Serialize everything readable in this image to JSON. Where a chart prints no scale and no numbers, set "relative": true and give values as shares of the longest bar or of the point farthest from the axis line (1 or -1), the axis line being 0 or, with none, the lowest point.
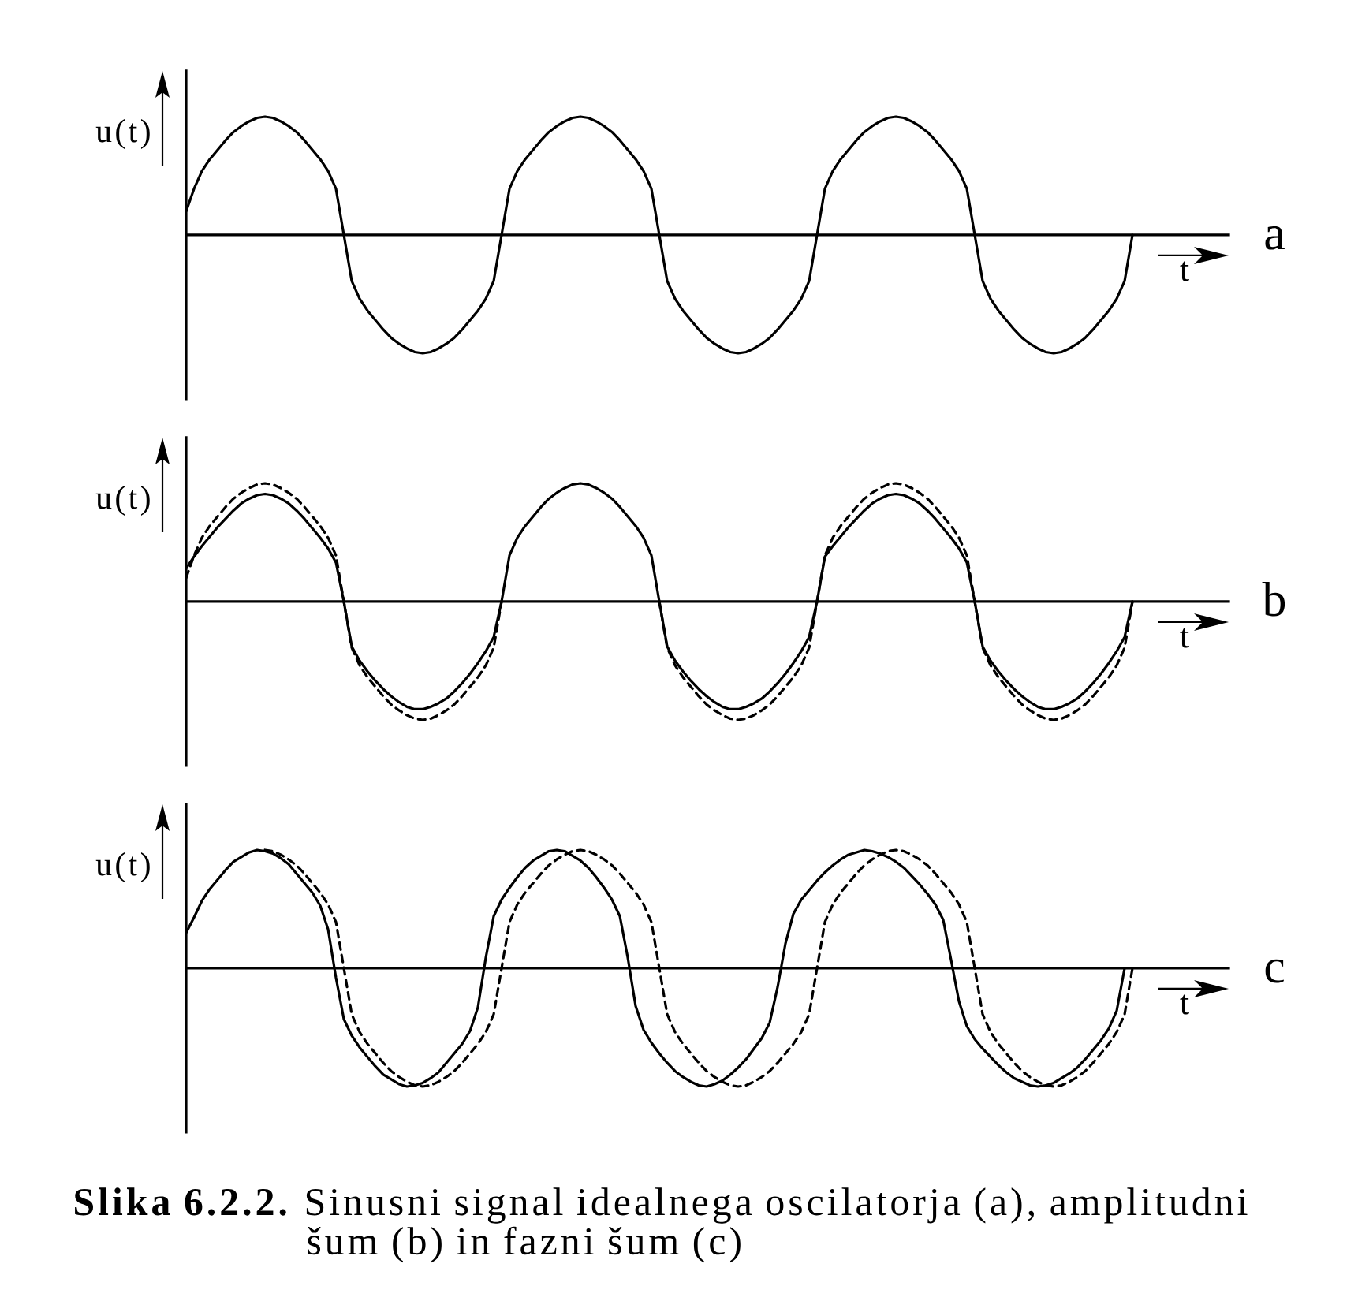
{
  "chart_data": [
    {
      "type": "line",
      "xlabel": "t",
      "ylabel": "u(t)",
      "relative": true,
      "annotations": [
        "a"
      ],
      "categories": [
        null,
        null,
        null,
        null,
        null,
        null,
        null,
        null,
        null,
        null,
        null,
        null,
        null,
        null,
        null,
        null,
        null,
        null,
        null,
        null,
        null,
        null,
        null,
        null,
        null,
        null,
        null,
        null,
        null,
        null,
        null,
        null,
        null,
        null,
        null,
        null,
        null,
        null,
        null,
        null,
        null,
        null,
        null,
        null,
        null,
        null,
        null,
        null,
        null,
        null,
        null,
        null,
        null,
        null,
        null,
        null,
        null,
        null,
        null,
        null,
        null,
        null,
        null,
        null,
        null,
        null,
        null,
        null,
        null,
        null,
        null,
        null,
        null,
        null,
        null,
        null,
        null,
        null,
        null,
        null,
        null,
        null,
        null,
        null,
        null,
        null,
        null,
        null,
        null,
        null,
        null,
        null,
        null,
        null,
        null,
        null,
        null,
        null,
        null,
        null,
        null,
        null,
        null,
        null,
        null,
        null,
        null,
        null,
        null,
        null,
        null,
        null,
        null,
        null,
        null,
        null,
        null,
        null,
        null,
        null,
        null
      ],
      "series": [
        {
          "color": "#000000",
          "line_style": "solid",
          "values": [
            0.2,
            0.39,
            0.54,
            0.64,
            0.72,
            0.8,
            0.87,
            0.92,
            0.96,
            0.99,
            1.0,
            0.99,
            0.96,
            0.92,
            0.87,
            0.8,
            0.72,
            0.64,
            0.54,
            0.39,
            0,
            -0.39,
            -0.54,
            -0.64,
            -0.72,
            -0.8,
            -0.87,
            -0.92,
            -0.96,
            -0.99,
            -1.0,
            -0.99,
            -0.96,
            -0.92,
            -0.87,
            -0.8,
            -0.72,
            -0.64,
            -0.54,
            -0.39,
            0,
            0.39,
            0.54,
            0.64,
            0.72,
            0.8,
            0.87,
            0.92,
            0.96,
            0.99,
            1.0,
            0.99,
            0.96,
            0.92,
            0.87,
            0.8,
            0.72,
            0.64,
            0.54,
            0.39,
            0,
            -0.39,
            -0.54,
            -0.64,
            -0.72,
            -0.8,
            -0.87,
            -0.92,
            -0.96,
            -0.99,
            -1.0,
            -0.99,
            -0.96,
            -0.92,
            -0.87,
            -0.8,
            -0.72,
            -0.64,
            -0.54,
            -0.39,
            0,
            0.39,
            0.54,
            0.64,
            0.72,
            0.8,
            0.87,
            0.92,
            0.96,
            0.99,
            1.0,
            0.99,
            0.96,
            0.92,
            0.87,
            0.8,
            0.72,
            0.64,
            0.54,
            0.39,
            0,
            -0.39,
            -0.54,
            -0.64,
            -0.72,
            -0.8,
            -0.87,
            -0.92,
            -0.96,
            -0.99,
            -1.0,
            -0.99,
            -0.96,
            -0.92,
            -0.87,
            -0.8,
            -0.72,
            -0.64,
            -0.54,
            -0.39,
            0
          ]
        }
      ]
    },
    {
      "type": "line",
      "xlabel": "t",
      "ylabel": "u(t)",
      "relative": true,
      "annotations": [
        "b"
      ],
      "categories": [
        null,
        null,
        null,
        null,
        null,
        null,
        null,
        null,
        null,
        null,
        null,
        null,
        null,
        null,
        null,
        null,
        null,
        null,
        null,
        null,
        null,
        null,
        null,
        null,
        null,
        null,
        null,
        null,
        null,
        null,
        null,
        null,
        null,
        null,
        null,
        null,
        null,
        null,
        null,
        null,
        null,
        null,
        null,
        null,
        null,
        null,
        null,
        null,
        null,
        null,
        null,
        null,
        null,
        null,
        null,
        null,
        null,
        null,
        null,
        null,
        null,
        null,
        null,
        null,
        null,
        null,
        null,
        null,
        null,
        null,
        null,
        null,
        null,
        null,
        null,
        null,
        null,
        null,
        null,
        null,
        null,
        null,
        null,
        null,
        null,
        null,
        null,
        null,
        null,
        null,
        null,
        null,
        null,
        null,
        null,
        null,
        null,
        null,
        null,
        null,
        null,
        null,
        null,
        null,
        null,
        null,
        null,
        null,
        null,
        null,
        null,
        null,
        null,
        null,
        null,
        null,
        null,
        null,
        null,
        null,
        null
      ],
      "series": [
        {
          "color": "#000000",
          "line_style": "dashed",
          "values": [
            0.2,
            0.39,
            0.54,
            0.64,
            0.72,
            0.8,
            0.87,
            0.92,
            0.96,
            0.99,
            1.0,
            0.99,
            0.96,
            0.92,
            0.87,
            0.8,
            0.72,
            0.64,
            0.54,
            0.39,
            0,
            -0.39,
            -0.54,
            -0.64,
            -0.72,
            -0.8,
            -0.87,
            -0.92,
            -0.96,
            -0.99,
            -1.0,
            -0.99,
            -0.96,
            -0.92,
            -0.87,
            -0.8,
            -0.72,
            -0.64,
            -0.54,
            -0.39,
            0,
            null,
            null,
            null,
            null,
            null,
            null,
            null,
            null,
            null,
            null,
            null,
            null,
            null,
            null,
            null,
            null,
            null,
            null,
            null,
            0,
            -0.39,
            -0.54,
            -0.64,
            -0.72,
            -0.8,
            -0.87,
            -0.92,
            -0.96,
            -0.99,
            -1.0,
            -0.99,
            -0.96,
            -0.92,
            -0.87,
            -0.8,
            -0.72,
            -0.64,
            -0.54,
            -0.39,
            0,
            0.39,
            0.54,
            0.64,
            0.72,
            0.8,
            0.87,
            0.92,
            0.96,
            0.99,
            1.0,
            0.99,
            0.96,
            0.92,
            0.87,
            0.8,
            0.72,
            0.64,
            0.54,
            0.39,
            0,
            -0.39,
            -0.54,
            -0.64,
            -0.72,
            -0.8,
            -0.87,
            -0.92,
            -0.96,
            -0.99,
            -1.0,
            -0.99,
            -0.96,
            -0.92,
            -0.87,
            -0.8,
            -0.72,
            -0.64,
            -0.54,
            -0.39,
            0
          ]
        },
        {
          "color": "#000000",
          "line_style": "solid",
          "values": [
            0.28,
            0.38,
            0.47,
            0.55,
            0.63,
            0.7,
            0.77,
            0.83,
            0.87,
            0.9,
            0.91,
            0.9,
            0.87,
            0.83,
            0.77,
            0.7,
            0.62,
            0.54,
            0.45,
            0.33,
            0,
            -0.38,
            -0.5,
            -0.59,
            -0.67,
            -0.74,
            -0.8,
            -0.85,
            -0.89,
            -0.91,
            -0.91,
            -0.89,
            -0.86,
            -0.82,
            -0.76,
            -0.69,
            -0.61,
            -0.52,
            -0.42,
            -0.3,
            0,
            0.39,
            0.54,
            0.64,
            0.72,
            0.8,
            0.87,
            0.92,
            0.96,
            0.99,
            1.0,
            0.99,
            0.96,
            0.92,
            0.87,
            0.8,
            0.72,
            0.64,
            0.54,
            0.39,
            0,
            -0.38,
            -0.5,
            -0.59,
            -0.67,
            -0.74,
            -0.8,
            -0.85,
            -0.89,
            -0.91,
            -0.91,
            -0.89,
            -0.86,
            -0.82,
            -0.76,
            -0.69,
            -0.61,
            -0.52,
            -0.42,
            -0.3,
            0,
            0.38,
            0.47,
            0.55,
            0.63,
            0.7,
            0.77,
            0.83,
            0.87,
            0.9,
            0.91,
            0.9,
            0.87,
            0.83,
            0.77,
            0.7,
            0.62,
            0.54,
            0.45,
            0.33,
            0,
            -0.38,
            -0.5,
            -0.59,
            -0.67,
            -0.74,
            -0.8,
            -0.85,
            -0.89,
            -0.91,
            -0.91,
            -0.89,
            -0.86,
            -0.82,
            -0.76,
            -0.69,
            -0.61,
            -0.52,
            -0.42,
            -0.3,
            0
          ]
        }
      ]
    },
    {
      "type": "line",
      "xlabel": "t",
      "ylabel": "u(t)",
      "relative": true,
      "categories": [
        null,
        null,
        null,
        null,
        null,
        null,
        null,
        null,
        null,
        null,
        null,
        null,
        null,
        null,
        null,
        null,
        null,
        null,
        null,
        null,
        null,
        null,
        null,
        null,
        null,
        null,
        null,
        null,
        null,
        null,
        null,
        null,
        null,
        null,
        null,
        null,
        null,
        null,
        null,
        null,
        null,
        null,
        null,
        null,
        null,
        null,
        null,
        null,
        null,
        null,
        null,
        null,
        null,
        null,
        null,
        null,
        null,
        null,
        null,
        null,
        null,
        null,
        null,
        null,
        null,
        null,
        null,
        null,
        null,
        null,
        null,
        null,
        null,
        null,
        null,
        null,
        null,
        null,
        null,
        null,
        null,
        null,
        null,
        null,
        null,
        null,
        null,
        null,
        null,
        null,
        null,
        null,
        null,
        null,
        null,
        null,
        null,
        null,
        null,
        null,
        null,
        null,
        null,
        null,
        null,
        null,
        null,
        null,
        null,
        null,
        null,
        null,
        null,
        null,
        null,
        null,
        null,
        null,
        null,
        null,
        null
      ],
      "series": [
        {
          "color": "#000000",
          "line_style": "dashed",
          "values": [
            null,
            null,
            null,
            null,
            null,
            null,
            null,
            null,
            null,
            null,
            1.0,
            0.99,
            0.96,
            0.92,
            0.87,
            0.8,
            0.72,
            0.64,
            0.54,
            0.39,
            0,
            -0.39,
            -0.54,
            -0.64,
            -0.72,
            -0.8,
            -0.87,
            -0.92,
            -0.96,
            -0.99,
            -1.0,
            -0.99,
            -0.96,
            -0.92,
            -0.87,
            -0.8,
            -0.72,
            -0.64,
            -0.54,
            -0.39,
            0,
            0.39,
            0.54,
            0.64,
            0.72,
            0.8,
            0.87,
            0.92,
            0.96,
            0.99,
            1.0,
            0.99,
            0.96,
            0.92,
            0.87,
            0.8,
            0.72,
            0.64,
            0.54,
            0.39,
            0,
            -0.39,
            -0.54,
            -0.64,
            -0.72,
            -0.8,
            -0.87,
            -0.92,
            -0.96,
            -0.99,
            -1.0,
            -0.99,
            -0.96,
            -0.92,
            -0.87,
            -0.8,
            -0.72,
            -0.64,
            -0.54,
            -0.39,
            0,
            0.39,
            0.54,
            0.64,
            0.72,
            0.8,
            0.87,
            0.92,
            0.96,
            0.99,
            1.0,
            0.99,
            0.96,
            0.92,
            0.87,
            0.8,
            0.72,
            0.64,
            0.54,
            0.39,
            0,
            -0.39,
            -0.54,
            -0.64,
            -0.72,
            -0.8,
            -0.87,
            -0.92,
            -0.96,
            -0.99,
            -1.0,
            -0.99,
            -0.96,
            -0.92,
            -0.87,
            -0.8,
            -0.72,
            -0.64,
            -0.54,
            -0.39,
            0
          ]
        },
        {
          "color": "#000000",
          "line_style": "solid",
          "values": [
            0.3,
            0.43,
            0.57,
            0.67,
            0.75,
            0.83,
            0.9,
            0.94,
            0.98,
            1.0,
            0.99,
            0.97,
            0.93,
            0.88,
            0.8,
            0.72,
            0.64,
            0.53,
            0.33,
            -0.08,
            -0.43,
            -0.57,
            -0.67,
            -0.75,
            -0.83,
            -0.9,
            -0.94,
            -0.98,
            -1.0,
            -0.99,
            -0.97,
            -0.93,
            -0.88,
            -0.8,
            -0.72,
            -0.64,
            -0.53,
            -0.33,
            0.09,
            0.44,
            0.58,
            0.68,
            0.77,
            0.85,
            0.91,
            0.95,
            0.99,
            1.0,
            0.99,
            0.95,
            0.91,
            0.85,
            0.77,
            0.68,
            0.58,
            0.44,
            0.09,
            -0.32,
            -0.52,
            -0.63,
            -0.72,
            -0.8,
            -0.87,
            -0.92,
            -0.96,
            -0.99,
            -1.0,
            -0.98,
            -0.95,
            -0.9,
            -0.84,
            -0.77,
            -0.68,
            -0.59,
            -0.46,
            -0.16,
            0.21,
            0.46,
            0.58,
            0.66,
            0.74,
            0.81,
            0.87,
            0.92,
            0.96,
            0.98,
            1.0,
            0.99,
            0.97,
            0.94,
            0.9,
            0.85,
            0.78,
            0.71,
            0.63,
            0.54,
            0.41,
            0.07,
            -0.28,
            -0.49,
            -0.6,
            -0.68,
            -0.75,
            -0.82,
            -0.88,
            -0.93,
            -0.96,
            -0.99,
            -1.0,
            -0.99,
            -0.97,
            -0.93,
            -0.89,
            -0.84,
            -0.77,
            -0.69,
            -0.61,
            -0.51,
            -0.36,
            0,
            null
          ]
        }
      ],
      "annotations": [
        "c",
        "**Slika 6.2.2.** Sinusni signal idealnega oscilatorja (a), amplitudni šum (b) in fazni šum (c)"
      ]
    }
  ]
}
